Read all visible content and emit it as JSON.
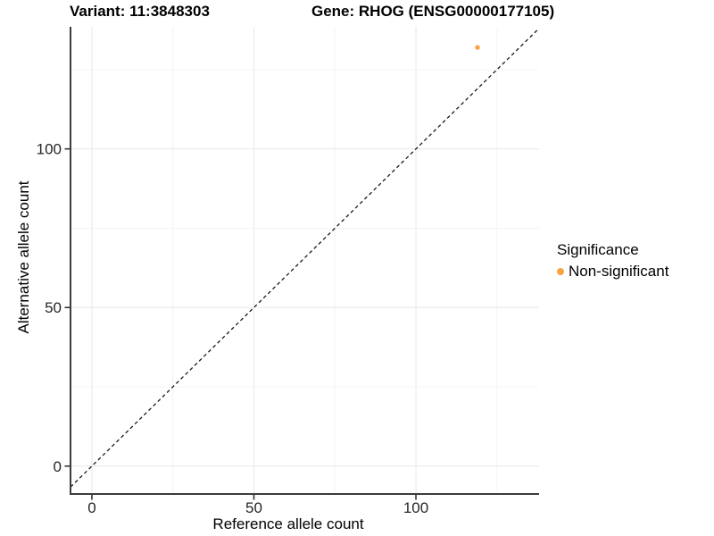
{
  "chart_data": {
    "type": "scatter",
    "title_left": "Variant: 11:3848303",
    "title_right": "Gene: RHOG (ENSG00000177105)",
    "xlabel": "Reference allele count",
    "ylabel": "Alternative allele count",
    "xlim": [
      -6.6,
      138.0
    ],
    "ylim": [
      -8.8,
      138.5
    ],
    "x_ticks": [
      0,
      50,
      100
    ],
    "y_ticks": [
      0,
      50,
      100
    ],
    "x_minor_ticks": [
      25,
      75,
      125
    ],
    "y_minor_ticks": [
      25,
      75,
      125
    ],
    "grid": true,
    "identity_line": {
      "style": "dashed",
      "equation": "y = x"
    },
    "series": [
      {
        "name": "Non-significant",
        "color": "#F9A242",
        "points": [
          {
            "x": 119,
            "y": 132
          }
        ]
      }
    ],
    "legend": {
      "title": "Significance",
      "position": "right",
      "items": [
        {
          "label": "Non-significant",
          "color": "#F9A242"
        }
      ]
    },
    "colors": {
      "background": "#FFFFFF",
      "grid_major": "#E9E9E9",
      "grid_minor": "#F4F4F4",
      "axis_line": "#3C3C3C",
      "tick_mark": "#333333",
      "tick_text": "#262626",
      "identity_line": "#1A1A1A"
    }
  }
}
